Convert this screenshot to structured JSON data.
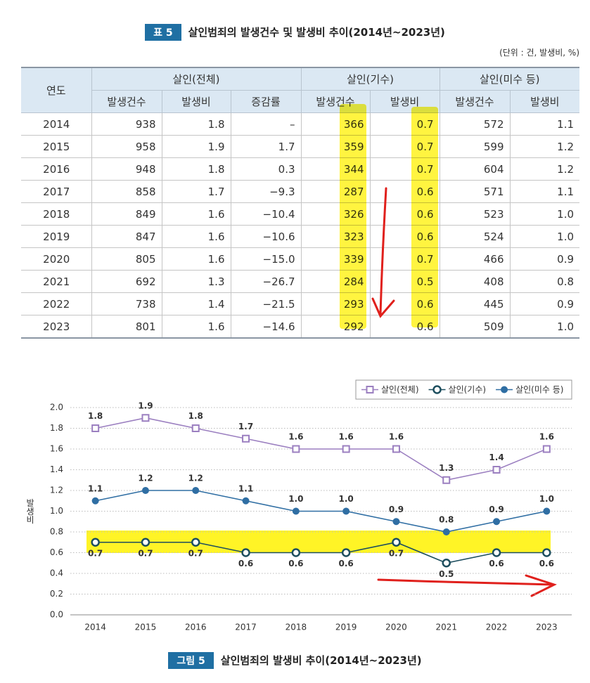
{
  "table_caption": {
    "badge": "표 5",
    "title": "살인범죄의 발생건수 및 발생비 추이(2014년~2023년)"
  },
  "unit": "(단위 : 건, 발생비, %)",
  "table": {
    "year_header": "연도",
    "groups": [
      {
        "label": "살인(전체)",
        "columns": [
          "발생건수",
          "발생비",
          "증감률"
        ]
      },
      {
        "label": "살인(기수)",
        "columns": [
          "발생건수",
          "발생비"
        ]
      },
      {
        "label": "살인(미수 등)",
        "columns": [
          "발생건수",
          "발생비"
        ]
      }
    ],
    "rows": [
      [
        "2014",
        "938",
        "1.8",
        "–",
        "366",
        "0.7",
        "572",
        "1.1"
      ],
      [
        "2015",
        "958",
        "1.9",
        "1.7",
        "359",
        "0.7",
        "599",
        "1.2"
      ],
      [
        "2016",
        "948",
        "1.8",
        "0.3",
        "344",
        "0.7",
        "604",
        "1.2"
      ],
      [
        "2017",
        "858",
        "1.7",
        "−9.3",
        "287",
        "0.6",
        "571",
        "1.1"
      ],
      [
        "2018",
        "849",
        "1.6",
        "−10.4",
        "326",
        "0.6",
        "523",
        "1.0"
      ],
      [
        "2019",
        "847",
        "1.6",
        "−10.6",
        "323",
        "0.6",
        "524",
        "1.0"
      ],
      [
        "2020",
        "805",
        "1.6",
        "−15.0",
        "339",
        "0.7",
        "466",
        "0.9"
      ],
      [
        "2021",
        "692",
        "1.3",
        "−26.7",
        "284",
        "0.5",
        "408",
        "0.8"
      ],
      [
        "2022",
        "738",
        "1.4",
        "−21.5",
        "293",
        "0.6",
        "445",
        "0.9"
      ],
      [
        "2023",
        "801",
        "1.6",
        "−14.6",
        "292",
        "0.6",
        "509",
        "1.0"
      ]
    ]
  },
  "chart_data": {
    "type": "line",
    "y_label": "발생비",
    "categories": [
      "2014",
      "2015",
      "2016",
      "2017",
      "2018",
      "2019",
      "2020",
      "2021",
      "2022",
      "2023"
    ],
    "series": [
      {
        "name": "살인(전체)",
        "color": "#9b7fc0",
        "marker": "square-open",
        "label_side": "above",
        "values": [
          1.8,
          1.9,
          1.8,
          1.7,
          1.6,
          1.6,
          1.6,
          1.3,
          1.4,
          1.6
        ]
      },
      {
        "name": "살인(기수)",
        "color": "#1d4e5e",
        "marker": "circle-open",
        "label_side": "below",
        "values": [
          0.7,
          0.7,
          0.7,
          0.6,
          0.6,
          0.6,
          0.7,
          0.5,
          0.6,
          0.6
        ]
      },
      {
        "name": "살인(미수 등)",
        "color": "#2f6ea3",
        "marker": "circle",
        "label_side": "above",
        "values": [
          1.1,
          1.2,
          1.2,
          1.1,
          1.0,
          1.0,
          0.9,
          0.8,
          0.9,
          1.0
        ],
        "value_labels": [
          "1.1",
          "1.2",
          "1.2",
          "1.1",
          "1.0",
          "1.0",
          "0.9",
          "0.8",
          "0.9",
          "1.0"
        ]
      }
    ],
    "ylim": [
      0,
      2.0
    ],
    "yticks": [
      {
        "value": 0,
        "label": "0.0"
      },
      0.2,
      0.4,
      0.6,
      0.8,
      {
        "value": 1.0,
        "label": "1.0"
      },
      1.2,
      1.4,
      1.6,
      1.8,
      {
        "value": 2.0,
        "label": "2.0"
      }
    ],
    "grid": true,
    "legend": "top-right"
  },
  "figure_caption": {
    "badge": "그림 5",
    "title": "살인범죄의 발생비 추이(2014년~2023년)"
  }
}
